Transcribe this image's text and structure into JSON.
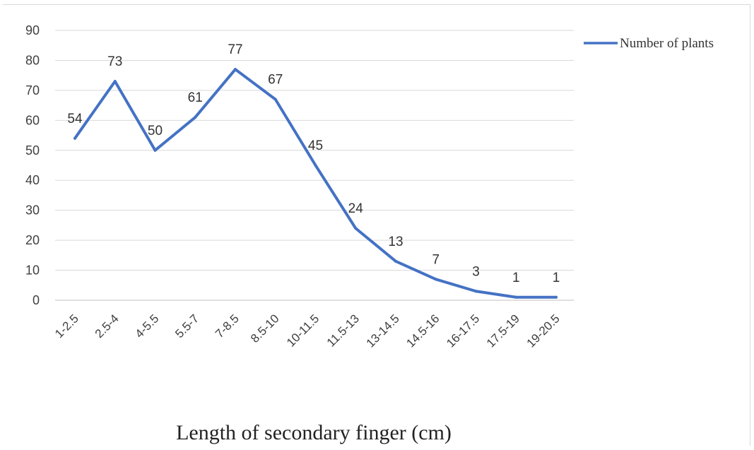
{
  "chart_data": {
    "type": "line",
    "categories": [
      "1-2.5",
      "2.5-4",
      "4-5.5",
      "5.5-7",
      "7-8.5",
      "8.5-10",
      "10-11.5",
      "11.5-13",
      "13-14.5",
      "14.5-16",
      "16-17.5",
      "17.5-19",
      "19-20.5"
    ],
    "series": [
      {
        "name": "Number of plants",
        "values": [
          54,
          73,
          50,
          61,
          77,
          67,
          45,
          24,
          13,
          7,
          3,
          1,
          1
        ],
        "color": "#4472c4"
      }
    ],
    "data_labels": [
      "54",
      "73",
      "50",
      "61",
      "77",
      "67",
      "45",
      "24",
      "13",
      "7",
      "3",
      "1",
      "1"
    ],
    "y_ticks": [
      "0",
      "10",
      "20",
      "30",
      "40",
      "50",
      "60",
      "70",
      "80",
      "90"
    ],
    "xlabel": "Length of secondary finger (cm)",
    "ylabel": "",
    "ylim": [
      0,
      90
    ],
    "grid": true,
    "legend_position": "top-right"
  }
}
